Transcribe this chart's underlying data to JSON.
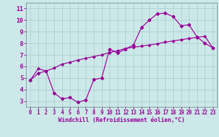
{
  "xlabel": "Windchill (Refroidissement éolien,°C)",
  "background_color": "#cde8e8",
  "grid_color": "#aacfcf",
  "line_color": "#990099",
  "xlim": [
    -0.5,
    23.5
  ],
  "ylim": [
    2.5,
    11.5
  ],
  "xticks": [
    0,
    1,
    2,
    3,
    4,
    5,
    6,
    7,
    8,
    9,
    10,
    11,
    12,
    13,
    14,
    15,
    16,
    17,
    18,
    19,
    20,
    21,
    22,
    23
  ],
  "yticks": [
    3,
    4,
    5,
    6,
    7,
    8,
    9,
    10,
    11
  ],
  "x_data": [
    0,
    1,
    2,
    3,
    4,
    5,
    6,
    7,
    8,
    9,
    10,
    11,
    12,
    13,
    14,
    15,
    16,
    17,
    18,
    19,
    20,
    21,
    22,
    23
  ],
  "y_curve1": [
    4.8,
    5.4,
    5.6,
    3.7,
    3.2,
    3.3,
    2.9,
    3.1,
    4.85,
    5.0,
    7.5,
    7.15,
    7.5,
    7.85,
    9.35,
    10.0,
    10.55,
    10.6,
    10.3,
    9.5,
    9.6,
    8.55,
    8.0,
    7.6
  ],
  "y_curve2": [
    4.8,
    5.8,
    5.6,
    5.85,
    6.2,
    6.35,
    6.55,
    6.7,
    6.85,
    7.0,
    7.2,
    7.35,
    7.55,
    7.65,
    7.75,
    7.85,
    7.95,
    8.1,
    8.2,
    8.3,
    8.42,
    8.5,
    8.6,
    7.6
  ],
  "xlabel_fontsize": 6.0,
  "tick_fontsize_x": 5.5,
  "tick_fontsize_y": 6.5
}
